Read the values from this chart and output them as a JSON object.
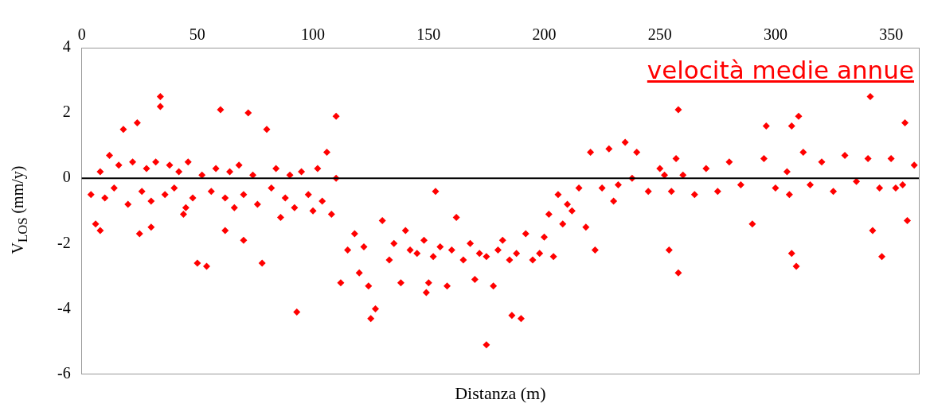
{
  "chart_data": {
    "type": "scatter",
    "xlabel": "Distanza (m)",
    "ylabel": "V$_{LOS}$ (mm/y)",
    "annotations": [
      "velocità medie annue"
    ],
    "marker": "diamond",
    "legend": false,
    "grid": false,
    "xlim": [
      0,
      362
    ],
    "xticks": [
      0,
      50,
      100,
      150,
      200,
      250,
      300,
      350
    ],
    "ylim": [
      -6,
      4
    ],
    "yticks": [
      4,
      2,
      0,
      -2,
      -4,
      -6
    ],
    "ref_lines": [
      {
        "axis": "y",
        "value": 0,
        "color": "#000000"
      }
    ],
    "series": [
      {
        "color": "#ff0000",
        "x": [
          4,
          6,
          8,
          10,
          12,
          14,
          16,
          18,
          20,
          22,
          24,
          26,
          28,
          30,
          32,
          34,
          34,
          36,
          38,
          40,
          42,
          44,
          46,
          48,
          50,
          52,
          54,
          56,
          58,
          60,
          62,
          64,
          66,
          68,
          70,
          72,
          74,
          76,
          78,
          80,
          82,
          84,
          86,
          88,
          90,
          92,
          93,
          95,
          98,
          100,
          102,
          104,
          106,
          108,
          110,
          110,
          8,
          25,
          30,
          45,
          62,
          70,
          112,
          115,
          118,
          120,
          122,
          124,
          125,
          127,
          130,
          133,
          135,
          138,
          140,
          142,
          145,
          148,
          149,
          150,
          152,
          153,
          155,
          158,
          160,
          162,
          165,
          168,
          170,
          172,
          175,
          175,
          178,
          180,
          182,
          185,
          186,
          188,
          190,
          192,
          195,
          198,
          200,
          202,
          204,
          206,
          208,
          210,
          212,
          215,
          218,
          220,
          222,
          225,
          228,
          230,
          232,
          235,
          238,
          240,
          245,
          250,
          252,
          254,
          255,
          257,
          258,
          258,
          260,
          265,
          270,
          275,
          280,
          285,
          290,
          295,
          296,
          300,
          305,
          306,
          307,
          307,
          309,
          310,
          312,
          315,
          320,
          325,
          330,
          335,
          340,
          341,
          342,
          345,
          346,
          350,
          352,
          355,
          356,
          357,
          360
        ],
        "values": [
          -0.5,
          -1.4,
          0.2,
          -0.6,
          0.7,
          -0.3,
          0.4,
          1.5,
          -0.8,
          0.5,
          1.7,
          -0.4,
          0.3,
          -0.7,
          0.5,
          2.5,
          2.2,
          -0.5,
          0.4,
          -0.3,
          0.2,
          -1.1,
          0.5,
          -0.6,
          -2.6,
          0.1,
          -2.7,
          -0.4,
          0.3,
          2.1,
          -0.6,
          0.2,
          -0.9,
          0.4,
          -0.5,
          2.0,
          0.1,
          -0.8,
          -2.6,
          1.5,
          -0.3,
          0.3,
          -1.2,
          -0.6,
          0.1,
          -0.9,
          -4.1,
          0.2,
          -0.5,
          -1.0,
          0.3,
          -0.7,
          0.8,
          -1.1,
          1.9,
          0.0,
          -1.6,
          -1.7,
          -1.5,
          -0.9,
          -1.6,
          -1.9,
          -3.2,
          -2.2,
          -1.7,
          -2.9,
          -2.1,
          -3.3,
          -4.3,
          -4.0,
          -1.3,
          -2.5,
          -2.0,
          -3.2,
          -1.6,
          -2.2,
          -2.3,
          -1.9,
          -3.5,
          -3.2,
          -2.4,
          -0.4,
          -2.1,
          -3.3,
          -2.2,
          -1.2,
          -2.5,
          -2.0,
          -3.1,
          -2.3,
          -5.1,
          -2.4,
          -3.3,
          -2.2,
          -1.9,
          -2.5,
          -4.2,
          -2.3,
          -4.3,
          -1.7,
          -2.5,
          -2.3,
          -1.8,
          -1.1,
          -2.4,
          -0.5,
          -1.4,
          -0.8,
          -1.0,
          -0.3,
          -1.5,
          0.8,
          -2.2,
          -0.3,
          0.9,
          -0.7,
          -0.2,
          1.1,
          0.0,
          0.8,
          -0.4,
          0.3,
          0.1,
          -2.2,
          -0.4,
          0.6,
          2.1,
          -2.9,
          0.1,
          -0.5,
          0.3,
          -0.4,
          0.5,
          -0.2,
          -1.4,
          0.6,
          1.6,
          -0.3,
          0.2,
          -0.5,
          1.6,
          -2.3,
          -2.7,
          1.9,
          0.8,
          -0.2,
          0.5,
          -0.4,
          0.7,
          -0.1,
          0.6,
          2.5,
          -1.6,
          -0.3,
          -2.4,
          0.6,
          -0.3,
          -0.2,
          1.7,
          -1.3,
          0.4
        ]
      }
    ]
  }
}
